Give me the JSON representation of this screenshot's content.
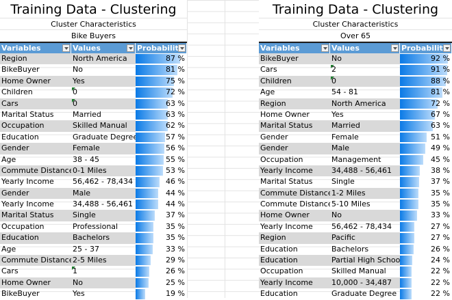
{
  "tables": [
    {
      "title": "Training Data - Clustering",
      "subtitle": "Cluster Characteristics",
      "cluster": "Bike Buyers",
      "headers": [
        "Variables",
        "Values",
        "Probability"
      ],
      "rows": [
        [
          "Region",
          "North America",
          87
        ],
        [
          "BikeBuyer",
          "No",
          81
        ],
        [
          "Home Owner",
          "Yes",
          75
        ],
        [
          "Children",
          "0",
          72
        ],
        [
          "Cars",
          "0",
          63
        ],
        [
          "Marital Status",
          "Married",
          63
        ],
        [
          "Occupation",
          "Skilled Manual",
          62
        ],
        [
          "Education",
          "Graduate Degree",
          57
        ],
        [
          "Gender",
          "Female",
          56
        ],
        [
          "Age",
          "38 - 45",
          55
        ],
        [
          "Commute Distance",
          "0-1 Miles",
          53
        ],
        [
          "Yearly Income",
          "56,462 - 78,434",
          46
        ],
        [
          "Gender",
          "Male",
          44
        ],
        [
          "Yearly Income",
          "34,488 - 56,461",
          44
        ],
        [
          "Marital Status",
          "Single",
          37
        ],
        [
          "Occupation",
          "Professional",
          35
        ],
        [
          "Education",
          "Bachelors",
          35
        ],
        [
          "Age",
          "25 - 37",
          33
        ],
        [
          "Commute Distance",
          "2-5 Miles",
          29
        ],
        [
          "Cars",
          "1",
          26
        ],
        [
          "Home Owner",
          "No",
          25
        ],
        [
          "BikeBuyer",
          "Yes",
          19
        ]
      ]
    },
    {
      "title": "Training Data - Clustering",
      "subtitle": "Cluster Characteristics",
      "cluster": "Over 65",
      "headers": [
        "Variables",
        "Values",
        "Probability"
      ],
      "rows": [
        [
          "BikeBuyer",
          "No",
          92
        ],
        [
          "Cars",
          "2",
          91
        ],
        [
          "Children",
          "0",
          88
        ],
        [
          "Age",
          "54 - 81",
          81
        ],
        [
          "Region",
          "North America",
          72
        ],
        [
          "Home Owner",
          "Yes",
          67
        ],
        [
          "Marital Status",
          "Married",
          63
        ],
        [
          "Gender",
          "Female",
          51
        ],
        [
          "Gender",
          "Male",
          49
        ],
        [
          "Occupation",
          "Management",
          45
        ],
        [
          "Yearly Income",
          "34,488 - 56,461",
          38
        ],
        [
          "Marital Status",
          "Single",
          37
        ],
        [
          "Commute Distance",
          "1-2 Miles",
          35
        ],
        [
          "Commute Distance",
          "5-10 Miles",
          35
        ],
        [
          "Home Owner",
          "No",
          33
        ],
        [
          "Yearly Income",
          "56,462 - 78,434",
          27
        ],
        [
          "Region",
          "Pacific",
          27
        ],
        [
          "Education",
          "Bachelors",
          26
        ],
        [
          "Education",
          "Partial High School",
          24
        ],
        [
          "Occupation",
          "Skilled Manual",
          22
        ],
        [
          "Yearly Income",
          "10,000 - 34,487",
          22
        ],
        [
          "Education",
          "Graduate Degree",
          22
        ]
      ]
    }
  ]
}
